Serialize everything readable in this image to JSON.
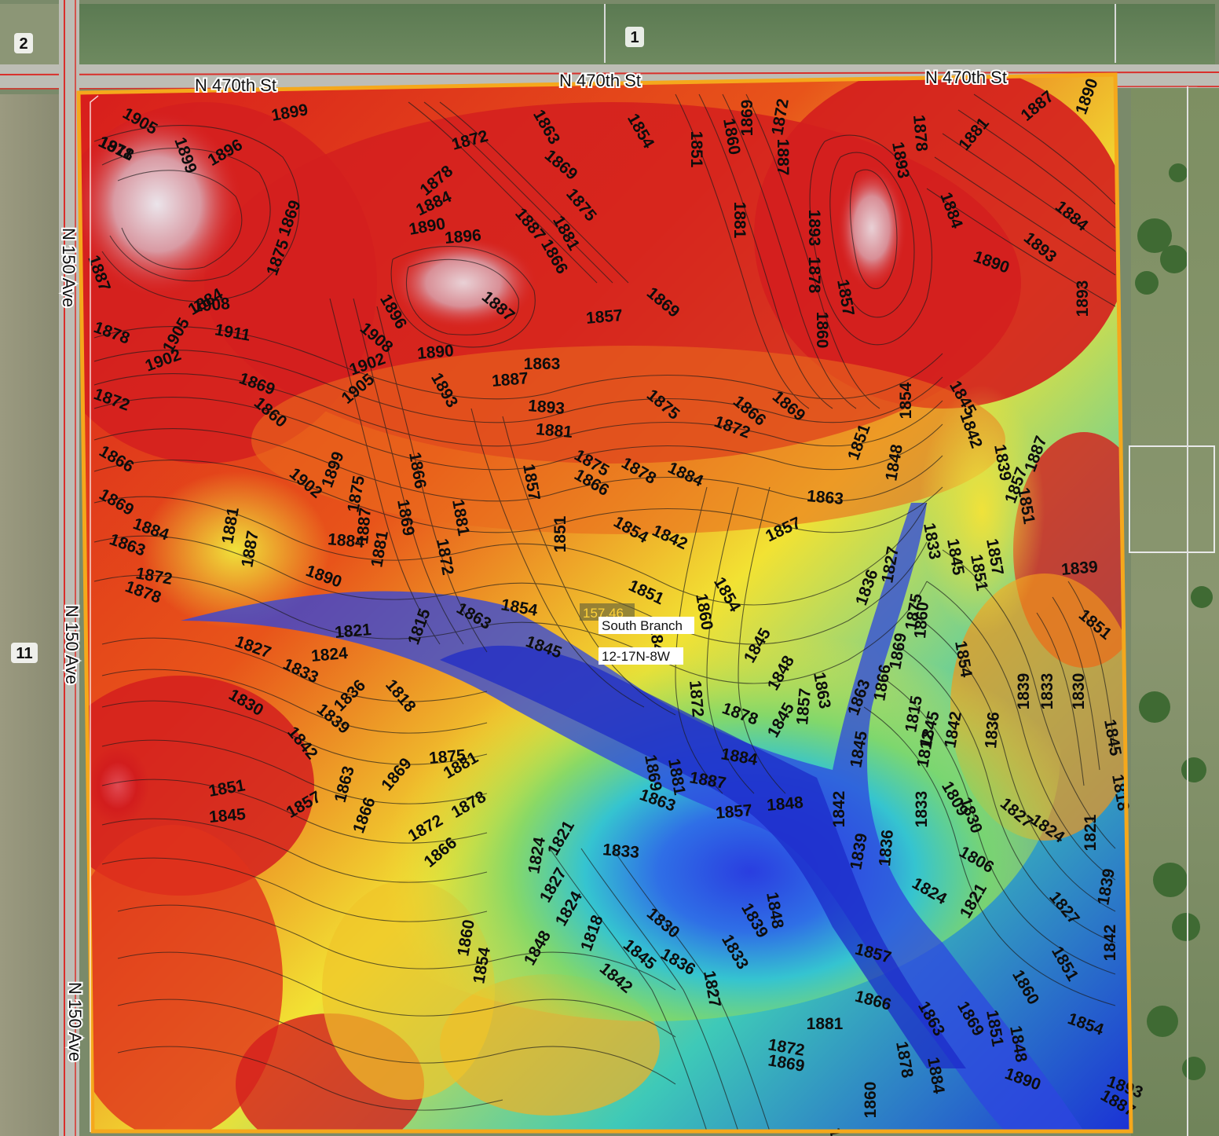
{
  "section_numbers": {
    "north": "1",
    "northwest": "2",
    "west": "11"
  },
  "roads": {
    "north": "N 470th St",
    "west": "N 150 Ave"
  },
  "parcel": {
    "acres": "157.46",
    "name": "South Branch",
    "legal": "12-17N-8W"
  },
  "colors": {
    "boundary": "#f5a81c",
    "road_line": "#d9302b",
    "elev_low": "#1a2fd6",
    "elev_mid": "#f2e233",
    "elev_high": "#d71c1c"
  },
  "contour_labels": [
    "1905",
    "1911",
    "1899",
    "1896",
    "1899",
    "1872",
    "1863",
    "1869",
    "1878",
    "1884",
    "1890",
    "1896",
    "1887",
    "1881",
    "1875",
    "1854",
    "1851",
    "1860",
    "1869",
    "1872",
    "1878",
    "1881",
    "1887",
    "1890",
    "1893",
    "1887",
    "1878",
    "1875",
    "1869",
    "1908",
    "1911",
    "1905",
    "1902",
    "1896",
    "1908",
    "1902",
    "1905",
    "1893",
    "1887",
    "1866",
    "1863",
    "1857",
    "1869",
    "1875",
    "1881",
    "1887",
    "1893",
    "1857",
    "1860",
    "1878",
    "1884",
    "1890",
    "1893",
    "1884",
    "1887",
    "1893",
    "1884",
    "1878",
    "1872",
    "1869",
    "1860",
    "1902",
    "1899",
    "1890",
    "1887",
    "1893",
    "1881",
    "1875",
    "1878",
    "1884",
    "1872",
    "1866",
    "1869",
    "1863",
    "1857",
    "1851",
    "1848",
    "1854",
    "1845",
    "1842",
    "1839",
    "1851",
    "1857",
    "1866",
    "1869",
    "1863",
    "1878",
    "1884",
    "1872",
    "1881",
    "1887",
    "1890",
    "1884",
    "1887",
    "1881",
    "1875",
    "1869",
    "1866",
    "1872",
    "1881",
    "1863",
    "1854",
    "1845",
    "1851",
    "1857",
    "1866",
    "1854",
    "1842",
    "1851",
    "1860",
    "1854",
    "1845",
    "1848",
    "1836",
    "1827",
    "1833",
    "1845",
    "1851",
    "1857",
    "1860",
    "1854",
    "1845",
    "1842",
    "1836",
    "1839",
    "1833",
    "1830",
    "1845",
    "1851",
    "1839",
    "1848",
    "1845",
    "1857",
    "1863",
    "1866",
    "1869",
    "1875",
    "1863",
    "1872",
    "1878",
    "1884",
    "1887",
    "1881",
    "1869",
    "1863",
    "1857",
    "1848",
    "1845",
    "1842",
    "1839",
    "1836",
    "1833",
    "1830",
    "1827",
    "1824",
    "1821",
    "1818",
    "1815",
    "1812",
    "1809",
    "1806",
    "1824",
    "1821",
    "1827",
    "1839",
    "1842",
    "1851",
    "1860",
    "1854",
    "1848",
    "1851",
    "1857",
    "1866",
    "1863",
    "1869",
    "1878",
    "1884",
    "1890",
    "1893",
    "1887",
    "1881",
    "1872",
    "1869",
    "1860",
    "1854",
    "1848",
    "1839",
    "1833",
    "1827",
    "1836",
    "1830",
    "1833",
    "1821",
    "1824",
    "1827",
    "1824",
    "1818",
    "1845",
    "1842",
    "1848",
    "1854",
    "1860",
    "1866",
    "1872",
    "1878",
    "1881",
    "1875",
    "1869",
    "1866",
    "1863",
    "1857",
    "1851",
    "1845",
    "1842",
    "1839",
    "1836",
    "1833",
    "1830",
    "1827",
    "1824",
    "1821",
    "1818",
    "1815"
  ]
}
